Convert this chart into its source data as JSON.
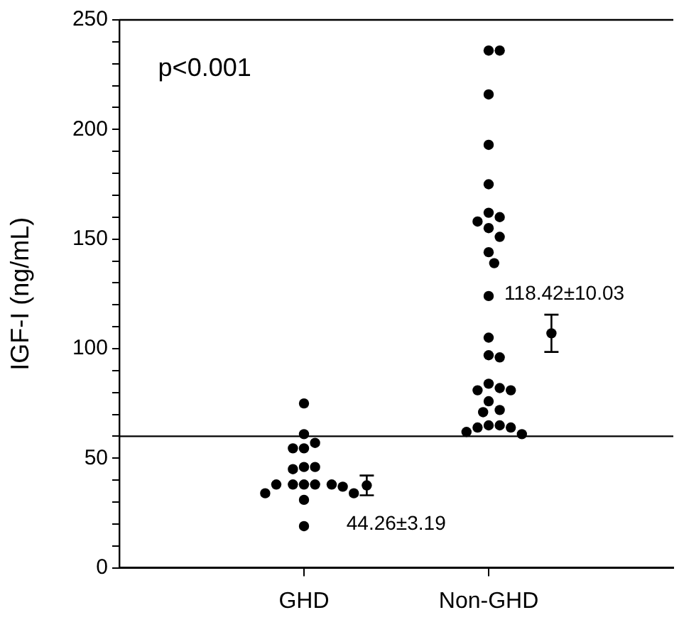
{
  "chart_data": {
    "type": "scatter",
    "ylabel": "IGF-I (ng/mL)",
    "categories": [
      "GHD",
      "Non-GHD"
    ],
    "ylim": [
      0,
      250
    ],
    "yticks": [
      0,
      {
        "value": 10,
        "label": null
      },
      {
        "value": 20,
        "label": null
      },
      {
        "value": 30,
        "label": null
      },
      {
        "value": 40,
        "label": null
      },
      50,
      {
        "value": 60,
        "label": null
      },
      {
        "value": 70,
        "label": null
      },
      {
        "value": 80,
        "label": null
      },
      {
        "value": 90,
        "label": null
      },
      100,
      {
        "value": 110,
        "label": null
      },
      {
        "value": 120,
        "label": null
      },
      {
        "value": 130,
        "label": null
      },
      {
        "value": 140,
        "label": null
      },
      150,
      {
        "value": 160,
        "label": null
      },
      {
        "value": 170,
        "label": null
      },
      {
        "value": 180,
        "label": null
      },
      {
        "value": 190,
        "label": null
      },
      200,
      {
        "value": 210,
        "label": null
      },
      {
        "value": 220,
        "label": null
      },
      {
        "value": 230,
        "label": null
      },
      {
        "value": 240,
        "label": null
      },
      250
    ],
    "series": [
      {
        "color": "#000000",
        "x": [
          "GHD",
          "GHD",
          "GHD",
          "GHD",
          "GHD",
          "GHD",
          "GHD",
          "GHD",
          "GHD",
          "GHD",
          "GHD",
          "GHD",
          "GHD",
          "GHD",
          "GHD",
          "GHD",
          "GHD",
          "GHD"
        ],
        "values": [
          75,
          61,
          54.5,
          54.5,
          57,
          45,
          46,
          46,
          38,
          38,
          38,
          38,
          37,
          38,
          34,
          31,
          34,
          19
        ]
      },
      {
        "color": "#000000",
        "x": [
          "Non-GHD",
          "Non-GHD",
          "Non-GHD",
          "Non-GHD",
          "Non-GHD",
          "Non-GHD",
          "Non-GHD",
          "Non-GHD",
          "Non-GHD",
          "Non-GHD",
          "Non-GHD",
          "Non-GHD",
          "Non-GHD",
          "Non-GHD",
          "Non-GHD",
          "Non-GHD",
          "Non-GHD",
          "Non-GHD",
          "Non-GHD",
          "Non-GHD",
          "Non-GHD",
          "Non-GHD",
          "Non-GHD",
          "Non-GHD",
          "Non-GHD",
          "Non-GHD",
          "Non-GHD",
          "Non-GHD",
          "Non-GHD"
        ],
        "values": [
          236,
          236,
          216,
          193,
          175,
          162,
          158,
          160,
          155,
          151,
          144,
          139,
          124,
          105,
          96,
          97,
          82,
          84,
          81,
          81,
          76,
          71,
          72,
          65,
          64,
          61,
          65,
          64,
          62
        ]
      },
      {
        "color": "#000000",
        "x": [
          "GHD",
          "Non-GHD"
        ],
        "values": [
          37.6,
          107
        ],
        "errors": [
          4.5,
          8.5
        ]
      }
    ],
    "marker": "circle",
    "legend": false,
    "grid": false,
    "ref_lines": [
      {
        "axis": "y",
        "value": 60
      }
    ],
    "annotations": [
      "p<0.001",
      "44.26±3.19",
      "118.42±10.03"
    ]
  }
}
